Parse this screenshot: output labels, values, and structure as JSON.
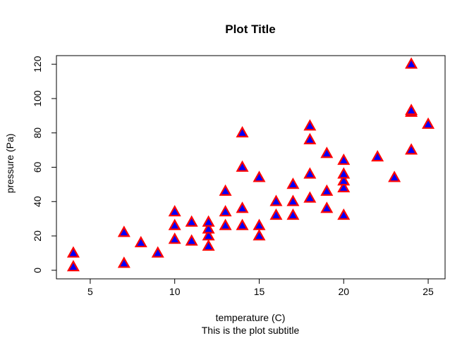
{
  "chart_data": {
    "type": "scatter",
    "title": "Plot Title",
    "subtitle": "This is the plot subtitle",
    "xlabel": "temperature (C)",
    "ylabel": "pressure (Pa)",
    "xlim": [
      3,
      26
    ],
    "ylim": [
      -5,
      125
    ],
    "xticks": [
      5,
      10,
      15,
      20,
      25
    ],
    "yticks": [
      0,
      20,
      40,
      60,
      80,
      100,
      120
    ],
    "grid": false,
    "marker": {
      "shape": "triangle",
      "fill": "#0000ff",
      "stroke": "#ff0000"
    },
    "points": [
      {
        "x": 4,
        "y": 2
      },
      {
        "x": 4,
        "y": 10
      },
      {
        "x": 7,
        "y": 4
      },
      {
        "x": 7,
        "y": 22
      },
      {
        "x": 8,
        "y": 16
      },
      {
        "x": 9,
        "y": 10
      },
      {
        "x": 10,
        "y": 18
      },
      {
        "x": 10,
        "y": 26
      },
      {
        "x": 10,
        "y": 34
      },
      {
        "x": 11,
        "y": 17
      },
      {
        "x": 11,
        "y": 28
      },
      {
        "x": 12,
        "y": 14
      },
      {
        "x": 12,
        "y": 20
      },
      {
        "x": 12,
        "y": 24
      },
      {
        "x": 12,
        "y": 28
      },
      {
        "x": 13,
        "y": 26
      },
      {
        "x": 13,
        "y": 34
      },
      {
        "x": 13,
        "y": 46
      },
      {
        "x": 14,
        "y": 26
      },
      {
        "x": 14,
        "y": 36
      },
      {
        "x": 14,
        "y": 60
      },
      {
        "x": 14,
        "y": 80
      },
      {
        "x": 15,
        "y": 20
      },
      {
        "x": 15,
        "y": 26
      },
      {
        "x": 15,
        "y": 54
      },
      {
        "x": 16,
        "y": 32
      },
      {
        "x": 16,
        "y": 40
      },
      {
        "x": 17,
        "y": 32
      },
      {
        "x": 17,
        "y": 40
      },
      {
        "x": 17,
        "y": 50
      },
      {
        "x": 18,
        "y": 42
      },
      {
        "x": 18,
        "y": 56
      },
      {
        "x": 18,
        "y": 76
      },
      {
        "x": 18,
        "y": 84
      },
      {
        "x": 19,
        "y": 36
      },
      {
        "x": 19,
        "y": 46
      },
      {
        "x": 19,
        "y": 68
      },
      {
        "x": 20,
        "y": 32
      },
      {
        "x": 20,
        "y": 48
      },
      {
        "x": 20,
        "y": 52
      },
      {
        "x": 20,
        "y": 56
      },
      {
        "x": 20,
        "y": 64
      },
      {
        "x": 22,
        "y": 66
      },
      {
        "x": 23,
        "y": 54
      },
      {
        "x": 24,
        "y": 70
      },
      {
        "x": 24,
        "y": 92
      },
      {
        "x": 24,
        "y": 93
      },
      {
        "x": 24,
        "y": 120
      },
      {
        "x": 25,
        "y": 85
      }
    ]
  }
}
